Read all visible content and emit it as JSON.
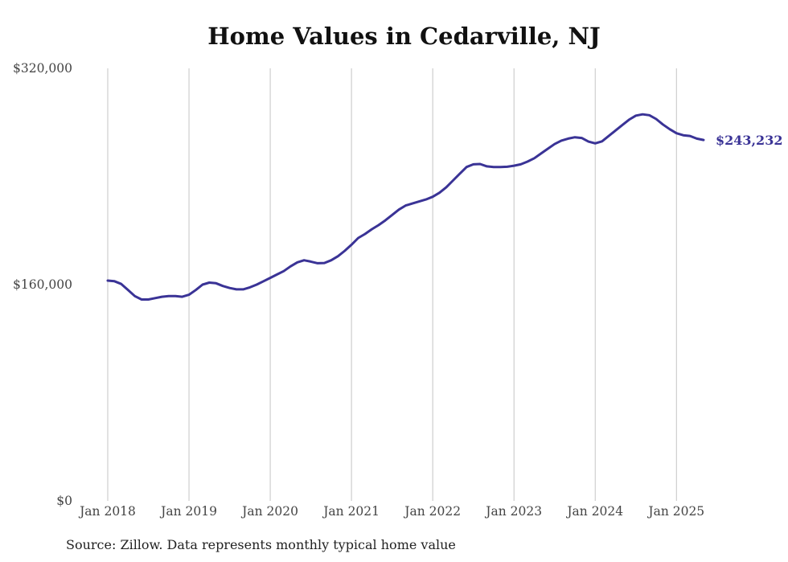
{
  "chart_data": {
    "type": "line",
    "title": "Home Values in Cedarville, NJ",
    "source": "Source: Zillow. Data represents monthly typical home value",
    "xlabel": "",
    "ylabel": "",
    "x_ticks": [
      "Jan 2018",
      "Jan 2019",
      "Jan 2020",
      "Jan 2021",
      "Jan 2022",
      "Jan 2023",
      "Jan 2024",
      "Jan 2025"
    ],
    "y_ticks": [
      "$0",
      "$160,000",
      "$320,000"
    ],
    "y_tick_values": [
      0,
      160000,
      320000
    ],
    "ylim": [
      0,
      320000
    ],
    "xlim": [
      "2018-01",
      "2025-05"
    ],
    "grid": "vertical",
    "line_color": "#3a3396",
    "end_label": "$243,232",
    "series": [
      {
        "x": [
          "2018-01",
          "2018-02",
          "2018-03",
          "2018-04",
          "2018-05",
          "2018-06",
          "2018-07",
          "2018-08",
          "2018-09",
          "2018-10",
          "2018-11",
          "2018-12",
          "2019-01",
          "2019-02",
          "2019-03",
          "2019-04",
          "2019-05",
          "2019-06",
          "2019-07",
          "2019-08",
          "2019-09",
          "2019-10",
          "2019-11",
          "2019-12",
          "2020-01",
          "2020-02",
          "2020-03",
          "2020-04",
          "2020-05",
          "2020-06",
          "2020-07",
          "2020-08",
          "2020-09",
          "2020-10",
          "2020-11",
          "2020-12",
          "2021-01",
          "2021-02",
          "2021-03",
          "2021-04",
          "2021-05",
          "2021-06",
          "2021-07",
          "2021-08",
          "2021-09",
          "2021-10",
          "2021-11",
          "2021-12",
          "2022-01",
          "2022-02",
          "2022-03",
          "2022-04",
          "2022-05",
          "2022-06",
          "2022-07",
          "2022-08",
          "2022-09",
          "2022-10",
          "2022-11",
          "2022-12",
          "2023-01",
          "2023-02",
          "2023-03",
          "2023-04",
          "2023-05",
          "2023-06",
          "2023-07",
          "2023-08",
          "2023-09",
          "2023-10",
          "2023-11",
          "2023-12",
          "2024-01",
          "2024-02",
          "2024-03",
          "2024-04",
          "2024-05",
          "2024-06",
          "2024-07",
          "2024-08",
          "2024-09",
          "2024-10",
          "2024-11",
          "2024-12",
          "2025-01",
          "2025-02",
          "2025-03",
          "2025-04",
          "2025-05"
        ],
        "y": [
          163000,
          162500,
          160500,
          156000,
          151500,
          149000,
          149000,
          150000,
          151000,
          151500,
          151500,
          151000,
          152500,
          156000,
          160000,
          161500,
          161000,
          159000,
          157500,
          156500,
          156500,
          158000,
          160000,
          162500,
          165000,
          167500,
          170000,
          173500,
          176500,
          178000,
          177000,
          175800,
          176000,
          178000,
          181000,
          185000,
          189500,
          194500,
          197500,
          201000,
          204000,
          207500,
          211500,
          215500,
          218500,
          220000,
          221500,
          223000,
          225000,
          228000,
          232000,
          237000,
          242000,
          247000,
          249000,
          249200,
          247500,
          247000,
          247000,
          247200,
          248000,
          249000,
          251000,
          253500,
          257000,
          260500,
          264000,
          266500,
          268000,
          269000,
          268500,
          265800,
          264500,
          266000,
          270000,
          274000,
          278000,
          282000,
          285000,
          286000,
          285300,
          282500,
          278500,
          275000,
          272000,
          270500,
          270000,
          268000,
          243232
        ]
      }
    ]
  }
}
